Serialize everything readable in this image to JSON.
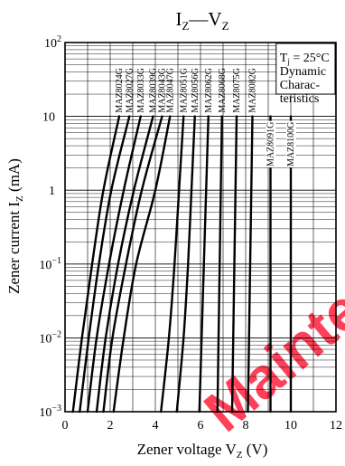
{
  "chart_data": {
    "type": "line",
    "title": {
      "main": "I",
      "main_sub": "Z",
      "sep": "—",
      "second": "V",
      "second_sub": "Z"
    },
    "xlabel": {
      "main": "Zener voltage",
      "var": "V",
      "sub": "Z",
      "unit": "(V)"
    },
    "ylabel": {
      "main": "Zener current",
      "var": "I",
      "sub": "Z",
      "unit": "(mA)"
    },
    "xlim": [
      0,
      12
    ],
    "ylim": [
      0.001,
      100
    ],
    "yscale": "log",
    "x_ticks": [
      "0",
      "2",
      "4",
      "6",
      "8",
      "10",
      "12"
    ],
    "y_ticks": [
      {
        "base": "10",
        "exp": "2",
        "value": 100
      },
      {
        "base": "10",
        "exp": "",
        "value": 10
      },
      {
        "base": "1",
        "exp": "",
        "value": 1
      },
      {
        "base": "10",
        "exp": "−1",
        "value": 0.1
      },
      {
        "base": "10",
        "exp": "−2",
        "value": 0.01
      },
      {
        "base": "10",
        "exp": "−3",
        "value": 0.001
      }
    ],
    "grid": true,
    "conditions": {
      "line1_main": "T",
      "line1_sub": "j",
      "line1_rest": " = 25°C",
      "line2": "Dynamic",
      "line3": "Charac-",
      "line4": "teristics"
    },
    "series": [
      {
        "name": "MAZ8024G",
        "x": [
          0.35,
          0.75,
          1.2,
          1.7,
          2.4
        ],
        "y": [
          0.001,
          0.01,
          0.1,
          1,
          10
        ]
      },
      {
        "name": "MAZ8027G",
        "x": [
          0.65,
          1.05,
          1.5,
          2.05,
          2.85
        ],
        "y": [
          0.001,
          0.01,
          0.1,
          1,
          10
        ]
      },
      {
        "name": "MAZ8033G",
        "x": [
          1.0,
          1.4,
          1.95,
          2.6,
          3.35
        ],
        "y": [
          0.001,
          0.01,
          0.1,
          1,
          10
        ]
      },
      {
        "name": "MAZ8039G",
        "x": [
          1.4,
          1.8,
          2.35,
          3.05,
          3.9
        ],
        "y": [
          0.001,
          0.01,
          0.1,
          1,
          10
        ]
      },
      {
        "name": "MAZ8043G",
        "x": [
          1.7,
          2.1,
          2.7,
          3.4,
          4.3
        ],
        "y": [
          0.001,
          0.01,
          0.1,
          1,
          10
        ]
      },
      {
        "name": "MAZ8047G",
        "x": [
          2.15,
          2.6,
          3.15,
          4.0,
          4.65
        ],
        "y": [
          0.001,
          0.01,
          0.1,
          1,
          10
        ]
      },
      {
        "name": "MAZ8051G",
        "x": [
          4.25,
          4.6,
          4.85,
          5.05,
          5.25
        ],
        "y": [
          0.001,
          0.01,
          0.1,
          1,
          10
        ]
      },
      {
        "name": "MAZ8056G",
        "x": [
          4.95,
          5.25,
          5.45,
          5.6,
          5.75
        ],
        "y": [
          0.001,
          0.01,
          0.1,
          1,
          10
        ]
      },
      {
        "name": "MAZ8062G",
        "x": [
          5.95,
          6.05,
          6.15,
          6.25,
          6.35
        ],
        "y": [
          0.001,
          0.01,
          0.1,
          1,
          10
        ]
      },
      {
        "name": "MAZ8068G",
        "x": [
          6.75,
          6.8,
          6.85,
          6.9,
          6.95
        ],
        "y": [
          0.001,
          0.01,
          0.1,
          1,
          10
        ]
      },
      {
        "name": "MAZ8075G",
        "x": [
          7.4,
          7.45,
          7.5,
          7.55,
          7.6
        ],
        "y": [
          0.001,
          0.01,
          0.1,
          1,
          10
        ]
      },
      {
        "name": "MAZ8082G",
        "x": [
          8.1,
          8.15,
          8.2,
          8.25,
          8.3
        ],
        "y": [
          0.001,
          0.01,
          0.1,
          1,
          10
        ]
      },
      {
        "name": "MAZ8091G",
        "x": [
          9.1,
          9.1,
          9.1,
          9.1,
          9.1
        ],
        "y": [
          0.001,
          0.01,
          0.1,
          1,
          10
        ]
      },
      {
        "name": "MAZ8100G",
        "x": [
          10.0,
          10.0,
          10.0,
          10.0,
          10.0
        ],
        "y": [
          0.001,
          0.01,
          0.1,
          1,
          10
        ]
      }
    ],
    "watermark": "Mainte"
  }
}
